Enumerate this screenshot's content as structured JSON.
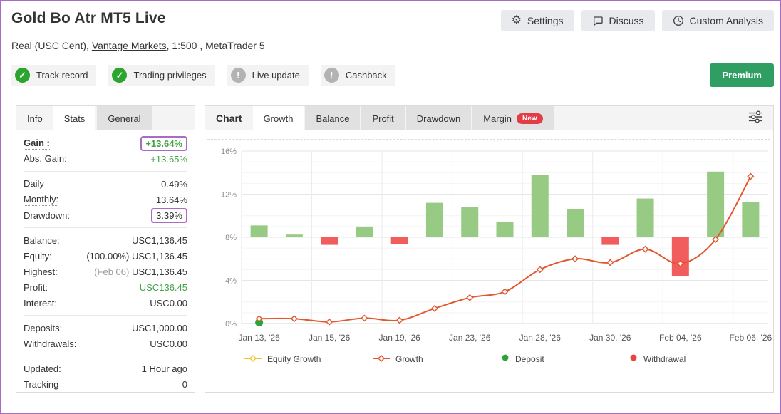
{
  "header": {
    "title": "Gold Bo Atr MT5 Live",
    "subtitle_prefix": "Real (USC Cent), ",
    "broker_link": "Vantage Markets",
    "subtitle_suffix": ", 1:500 , MetaTrader 5",
    "actions": [
      {
        "label": "Settings",
        "icon": "gear-icon"
      },
      {
        "label": "Discuss",
        "icon": "chat-icon"
      },
      {
        "label": "Custom Analysis",
        "icon": "clock-icon"
      }
    ],
    "badges": [
      {
        "label": "Track record",
        "status": "ok",
        "icon": "check-icon"
      },
      {
        "label": "Trading privileges",
        "status": "ok",
        "icon": "check-icon"
      },
      {
        "label": "Live update",
        "status": "off",
        "icon": "exclamation-icon"
      },
      {
        "label": "Cashback",
        "status": "off",
        "icon": "exclamation-icon"
      }
    ],
    "premium_label": "Premium"
  },
  "stats_panel": {
    "tabs": [
      {
        "label": "Info",
        "active": false
      },
      {
        "label": "Stats",
        "active": true
      },
      {
        "label": "General",
        "active": false
      }
    ],
    "rows": [
      {
        "label": "Gain :",
        "value": "+13.64%",
        "label_bold": true,
        "dotted": true,
        "green": true,
        "boxed": true,
        "value_bold": true
      },
      {
        "label": "Abs. Gain:",
        "value": "+13.65%",
        "dotted": true,
        "green": true
      },
      {
        "sep": true
      },
      {
        "label": "Daily",
        "value": "0.49%",
        "dotted": true
      },
      {
        "label": "Monthly:",
        "value": "13.64%",
        "dotted": true
      },
      {
        "label": "Drawdown:",
        "value": "3.39%",
        "boxed": true
      },
      {
        "sep": true
      },
      {
        "label": "Balance:",
        "value": "USC1,136.45"
      },
      {
        "label": "Equity:",
        "muted_prefix": "(100.00%)",
        "value": "USC1,136.45"
      },
      {
        "label": "Highest:",
        "muted_prefix": "(Feb 06)",
        "prefix_light": true,
        "value": "USC1,136.45"
      },
      {
        "label": "Profit:",
        "value": "USC136.45",
        "green": true
      },
      {
        "label": "Interest:",
        "value": "USC0.00"
      },
      {
        "sep": true
      },
      {
        "label": "Deposits:",
        "value": "USC1,000.00"
      },
      {
        "label": "Withdrawals:",
        "value": "USC0.00"
      },
      {
        "sep": true
      },
      {
        "label": "Updated:",
        "value": "1 Hour ago"
      },
      {
        "label": "Tracking",
        "value": "0"
      }
    ]
  },
  "chart_panel": {
    "tabs": [
      "Chart",
      "Growth",
      "Balance",
      "Profit",
      "Drawdown",
      "Margin"
    ],
    "new_badge": "New"
  },
  "chart_data": {
    "type": "bar+line combo",
    "x": [
      0,
      1,
      2,
      3,
      4,
      5,
      6,
      7,
      8,
      9,
      10,
      11,
      12,
      13,
      14
    ],
    "x_tick_positions": [
      0,
      2,
      4,
      6,
      8,
      10,
      12,
      14
    ],
    "x_tick_labels": [
      "Jan 13, '26",
      "Jan 15, '26",
      "Jan 19, '26",
      "Jan 23, '26",
      "Jan 28, '26",
      "Jan 30, '26",
      "Feb 04, '26",
      "Feb 06, '26"
    ],
    "ylim": [
      0,
      16
    ],
    "y_ticks": [
      0,
      4,
      8,
      12,
      16
    ],
    "y_tick_labels": [
      "0%",
      "4%",
      "8%",
      "12%",
      "16%"
    ],
    "bar_baseline": 8,
    "series": [
      {
        "name": "Growth",
        "type": "line",
        "color": "#e2572e",
        "values": [
          0.45,
          0.45,
          0.15,
          0.5,
          0.3,
          1.4,
          2.4,
          2.95,
          5.0,
          6.0,
          5.65,
          6.9,
          5.55,
          7.8,
          13.65
        ]
      },
      {
        "name": "Daily change bars",
        "type": "bar",
        "color_up": "#97cb83",
        "color_down": "#f15d5d",
        "values_top": [
          9.1,
          8.25,
          7.3,
          9.0,
          7.4,
          11.2,
          10.8,
          9.4,
          13.8,
          10.6,
          7.3,
          11.6,
          4.4,
          14.1,
          11.3
        ]
      }
    ],
    "markers": [
      {
        "type": "deposit",
        "x": 0,
        "value": 0.1,
        "color": "#2da33c"
      }
    ],
    "legend": [
      {
        "label": "Equity Growth",
        "marker": "line",
        "color": "#edc52f"
      },
      {
        "label": "Growth",
        "marker": "line",
        "color": "#e2572e"
      },
      {
        "label": "Deposit",
        "marker": "dot",
        "color": "#2da33c"
      },
      {
        "label": "Withdrawal",
        "marker": "dot",
        "color": "#e8433c"
      }
    ],
    "grid": true,
    "legend_position": "bottom"
  },
  "colors": {
    "accent_purple": "#a96cc4",
    "green_text": "#43a047",
    "premium_bg": "#2f9e62",
    "bar_green": "#97cb83",
    "bar_red": "#f15d5d",
    "growth_line": "#e2572e"
  }
}
